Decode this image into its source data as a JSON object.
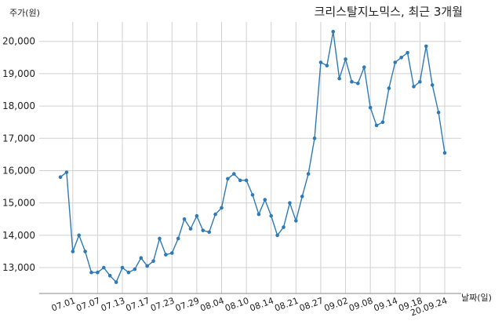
{
  "chart_data": {
    "type": "line",
    "title": "크리스탈지노믹스, 최근 3개월",
    "ylabel": "주가(원)",
    "xlabel": "날짜(일)",
    "ylim": [
      12200,
      20600
    ],
    "yticks": [
      13000,
      14000,
      15000,
      16000,
      17000,
      18000,
      19000,
      20000
    ],
    "ytick_labels": [
      "13,000",
      "14,000",
      "15,000",
      "16,000",
      "17,000",
      "18,000",
      "19,000",
      "20,000"
    ],
    "xtick_labels": [
      "07.01",
      "07.07",
      "07.13",
      "07.17",
      "07.23",
      "07.29",
      "08.04",
      "08.10",
      "08.14",
      "08.21",
      "08.27",
      "09.02",
      "09.08",
      "09.14",
      "09.18",
      "20.09.24"
    ],
    "xtick_index": [
      2,
      6,
      10,
      14,
      18,
      22,
      26,
      30,
      34,
      38,
      42,
      46,
      50,
      54,
      58,
      62
    ],
    "grid": true,
    "colors": {
      "line": "#2e7ab6",
      "grid": "#d0d0d0"
    },
    "series": [
      {
        "values": [
          15800,
          15950,
          13500,
          14000,
          13500,
          12850,
          12850,
          13000,
          12750,
          12550,
          13000,
          12850,
          12950,
          13300,
          13050,
          13200,
          13900,
          13400,
          13450,
          13900,
          14500,
          14200,
          14600,
          14150,
          14100,
          14650,
          14850,
          15750,
          15900,
          15700,
          15700,
          15250,
          14650,
          15100,
          14600,
          14000,
          14250,
          15000,
          14450,
          15200,
          15900,
          17000,
          19350,
          19250,
          20300,
          18850,
          19450,
          18750,
          18700,
          19200,
          17950,
          17400,
          17500,
          18550,
          19350,
          19500,
          19650,
          18600,
          18750,
          19850,
          18650,
          17800,
          16550
        ]
      }
    ]
  }
}
